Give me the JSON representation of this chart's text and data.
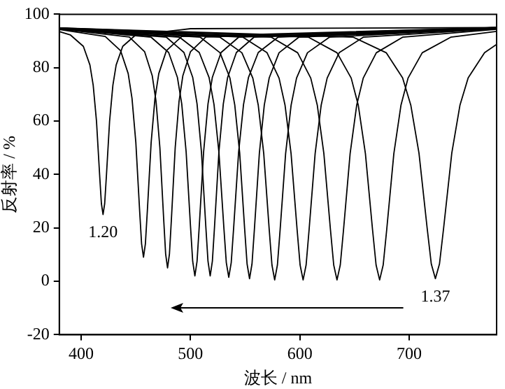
{
  "chart_data": {
    "type": "line",
    "xlabel": "波长 / nm",
    "ylabel": "反射率 / %",
    "xlim": [
      380,
      780
    ],
    "ylim": [
      -20,
      100
    ],
    "xticks": [
      400,
      500,
      600,
      700
    ],
    "yticks": [
      -20,
      0,
      20,
      40,
      60,
      80,
      100
    ],
    "grid": false,
    "legend": false,
    "marker": "none",
    "line_style": "solid",
    "annotations": [
      "1.20",
      "1.37"
    ],
    "series": [
      {
        "color": "#000000",
        "x": [
          380,
          390,
          402,
          408,
          411,
          414,
          417,
          418.5,
          420,
          421.5,
          423,
          426,
          429,
          432,
          438,
          450,
          500,
          780
        ],
        "values": [
          93.5,
          92.3,
          88,
          81,
          73.4,
          60,
          39,
          29.1,
          25,
          29.1,
          39,
          60,
          73.4,
          81,
          88,
          92.3,
          94.6,
          95
        ]
      },
      {
        "color": "#000000",
        "x": [
          380,
          422,
          436,
          443,
          446.5,
          450,
          453.5,
          455.25,
          457,
          458.75,
          460.5,
          464,
          467.5,
          471,
          478,
          492,
          780
        ],
        "values": [
          94.3,
          91.7,
          86.4,
          77.8,
          68.5,
          52,
          26.2,
          14.1,
          9,
          14.1,
          26.2,
          52,
          68.5,
          77.8,
          86.4,
          91.7,
          95
        ]
      },
      {
        "color": "#000000",
        "x": [
          380,
          444,
          458,
          465,
          468.5,
          472,
          475.5,
          477.25,
          479,
          480.75,
          482.5,
          486,
          489.5,
          493,
          500,
          514,
          780
        ],
        "values": [
          94.5,
          91.5,
          86,
          77,
          67.3,
          50,
          23,
          10.3,
          5,
          10.3,
          23,
          50,
          67.3,
          77,
          86,
          91.5,
          95
        ]
      },
      {
        "color": "#000000",
        "x": [
          380,
          464,
          480,
          488,
          492,
          496,
          500,
          502,
          504,
          506,
          508,
          512,
          516,
          520,
          528,
          544,
          780
        ],
        "values": [
          94.6,
          91.4,
          85.7,
          76.4,
          66.4,
          48.5,
          20.6,
          7.5,
          2,
          7.5,
          20.6,
          48.5,
          66.4,
          76.4,
          85.7,
          91.4,
          95
        ]
      },
      {
        "color": "#000000",
        "x": [
          380,
          478,
          494,
          502,
          506,
          510,
          514,
          516,
          518,
          520,
          522,
          526,
          530,
          534,
          542,
          558,
          780
        ],
        "values": [
          94.6,
          91.4,
          85.7,
          76.4,
          66.4,
          48.5,
          20.6,
          7.5,
          2,
          7.5,
          20.6,
          48.5,
          66.4,
          76.4,
          85.7,
          91.4,
          95
        ]
      },
      {
        "color": "#000000",
        "x": [
          380,
          490,
          508,
          517,
          521.5,
          526,
          530.5,
          532.75,
          535,
          537.25,
          539.5,
          544,
          548.5,
          553,
          562,
          580,
          780
        ],
        "values": [
          94.7,
          91.4,
          85.7,
          76.3,
          66.2,
          48.3,
          20.2,
          7,
          1.5,
          7,
          20.2,
          48.3,
          66.2,
          76.3,
          85.7,
          91.4,
          94.9
        ]
      },
      {
        "color": "#000000",
        "x": [
          380,
          509,
          527,
          536,
          540.5,
          545,
          549.5,
          551.75,
          554,
          556.25,
          558.5,
          563,
          567.5,
          572,
          581,
          599,
          780
        ],
        "values": [
          94.7,
          91.4,
          85.6,
          76.2,
          66,
          48,
          19.8,
          6.5,
          1,
          6.5,
          19.8,
          48,
          66,
          76.2,
          85.6,
          91.4,
          94.8
        ]
      },
      {
        "color": "#000000",
        "x": [
          380,
          527,
          547,
          557,
          562,
          567,
          572,
          574.5,
          577,
          579.5,
          582,
          587,
          592,
          597,
          607,
          627,
          780
        ],
        "values": [
          94.8,
          91.4,
          85.6,
          76.1,
          65.9,
          47.8,
          19.4,
          6.1,
          0.5,
          6.1,
          19.4,
          47.8,
          65.9,
          76.1,
          85.6,
          91.4,
          94.8
        ]
      },
      {
        "color": "#000000",
        "x": [
          380,
          548,
          570,
          581,
          586.5,
          592,
          597.5,
          600.25,
          603,
          605.75,
          608.5,
          614,
          619.5,
          625,
          636,
          658,
          780
        ],
        "values": [
          94.8,
          91.4,
          85.6,
          76.1,
          65.9,
          47.8,
          19.4,
          6.1,
          0.5,
          6.1,
          19.4,
          47.8,
          65.9,
          76.1,
          85.6,
          91.4,
          94.6
        ]
      },
      {
        "color": "#000000",
        "x": [
          380,
          574,
          598,
          610,
          616,
          622,
          628,
          631,
          634,
          637,
          640,
          646,
          652,
          658,
          670,
          694,
          780
        ],
        "values": [
          94.8,
          91.4,
          85.6,
          76.1,
          65.9,
          47.8,
          19.4,
          6.1,
          0.5,
          6.1,
          19.4,
          47.8,
          65.9,
          76.1,
          85.6,
          91.4,
          94.4
        ]
      },
      {
        "color": "#000000",
        "x": [
          380,
          608,
          634,
          647,
          653.5,
          660,
          666.5,
          669.75,
          673,
          676.25,
          679.5,
          686,
          692.5,
          699,
          712,
          738,
          780
        ],
        "values": [
          94.9,
          91.4,
          85.6,
          76.1,
          65.9,
          47.8,
          19.4,
          6.1,
          0.5,
          6.1,
          19.4,
          47.8,
          65.9,
          76.1,
          85.6,
          91.4,
          93.6
        ]
      },
      {
        "color": "#000000",
        "x": [
          380,
          649,
          679,
          694,
          701.5,
          709,
          716.5,
          720.25,
          724,
          727.75,
          731.5,
          739,
          746.5,
          754,
          769,
          780
        ],
        "values": [
          94.9,
          91.4,
          85.6,
          76.2,
          66,
          48,
          19.8,
          6.5,
          1,
          6.5,
          19.8,
          48,
          66,
          76.2,
          85.6,
          88.7
        ]
      }
    ]
  }
}
